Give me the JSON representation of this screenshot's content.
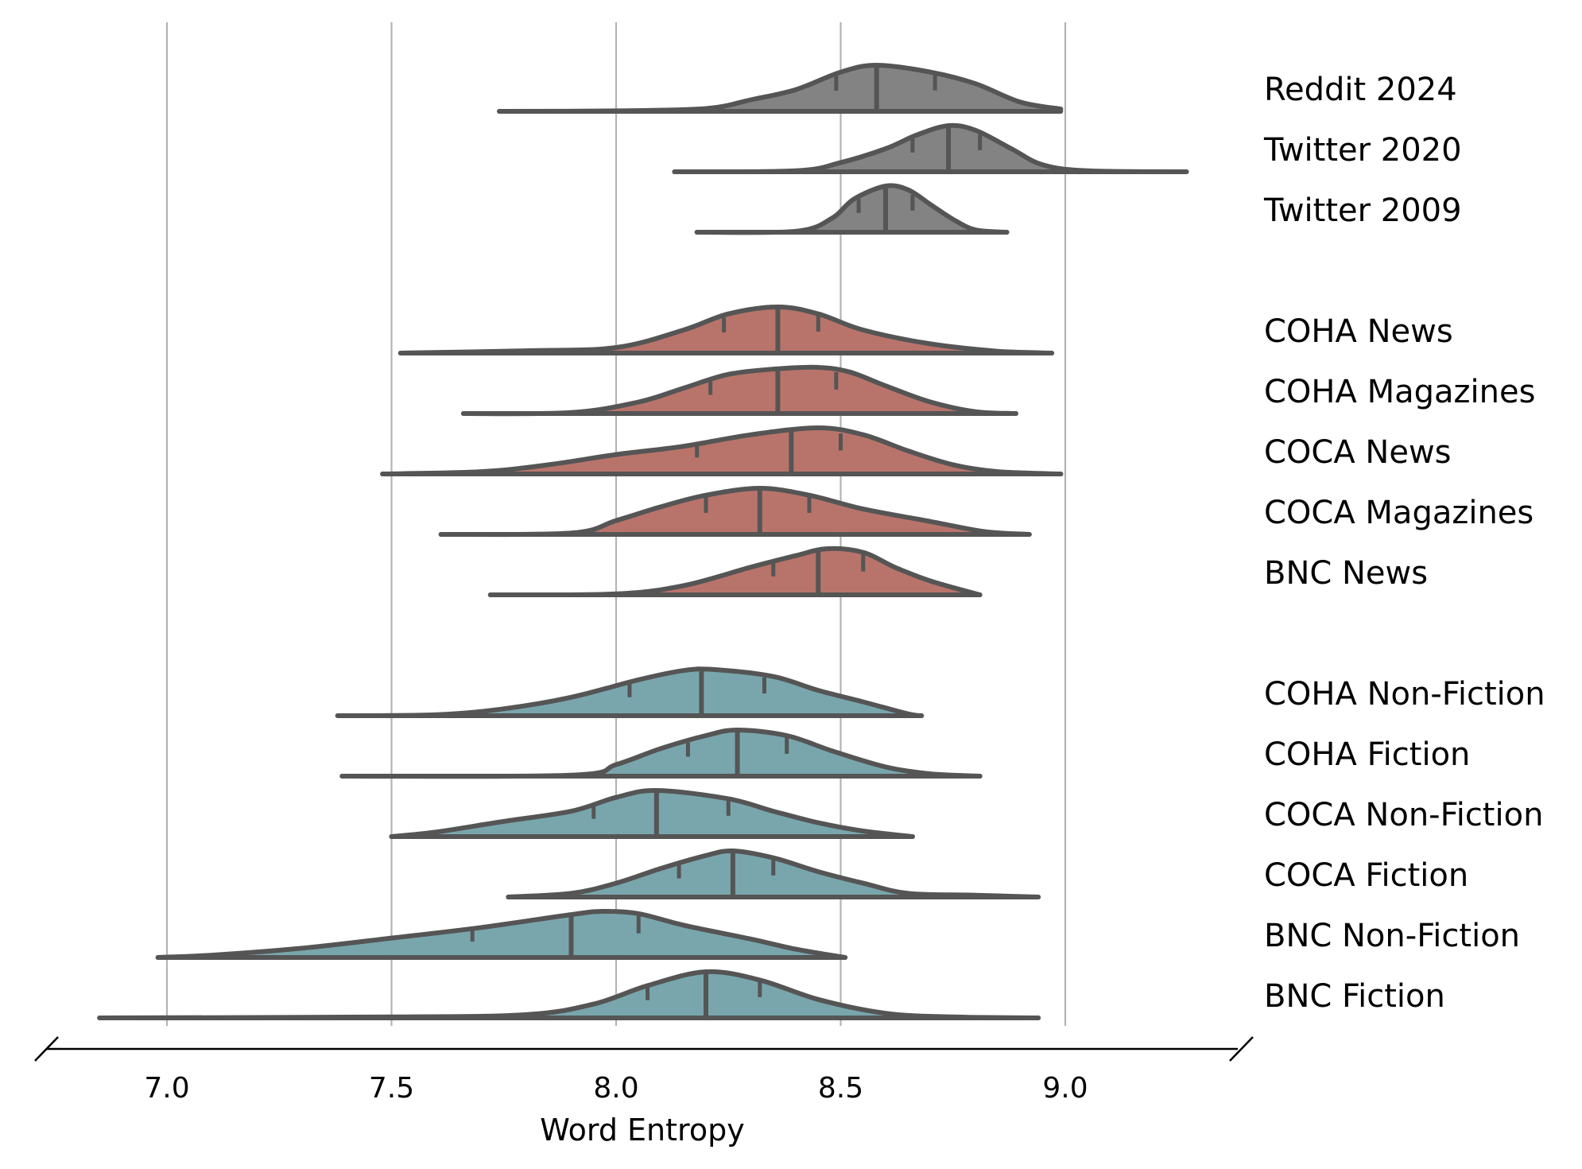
{
  "chart_data": {
    "type": "ridgeline",
    "xlabel": "Word Entropy",
    "xlim": [
      6.7,
      9.42
    ],
    "xticks": [
      7.0,
      7.5,
      8.0,
      8.5,
      9.0
    ],
    "x_tick_labels": [
      "7.0",
      "7.5",
      "8.0",
      "8.5",
      "9.0"
    ],
    "grid": "vertical",
    "colors": {
      "social_media": "#838383",
      "news_magazines": "#b8746b",
      "books": "#79a6ad",
      "outline": "#555555",
      "grid": "#b3b3b3"
    },
    "groups": [
      {
        "color_key": "social_media",
        "series": [
          {
            "name": "Reddit 2024",
            "min": 7.74,
            "max": 8.99,
            "q1": 8.49,
            "median": 8.58,
            "q3": 8.71,
            "peak": 8.58,
            "shape": [
              [
                7.74,
                0
              ],
              [
                8.0,
                0.01
              ],
              [
                8.2,
                0.06
              ],
              [
                8.3,
                0.25
              ],
              [
                8.4,
                0.47
              ],
              [
                8.5,
                0.85
              ],
              [
                8.58,
                1.0
              ],
              [
                8.7,
                0.85
              ],
              [
                8.8,
                0.6
              ],
              [
                8.9,
                0.2
              ],
              [
                8.99,
                0.05
              ]
            ]
          },
          {
            "name": "Twitter 2020",
            "min": 8.13,
            "max": 9.27,
            "q1": 8.66,
            "median": 8.74,
            "q3": 8.81,
            "peak": 8.74,
            "shape": [
              [
                8.13,
                0
              ],
              [
                8.4,
                0.02
              ],
              [
                8.5,
                0.2
              ],
              [
                8.6,
                0.5
              ],
              [
                8.67,
                0.8
              ],
              [
                8.74,
                1.0
              ],
              [
                8.8,
                0.9
              ],
              [
                8.88,
                0.5
              ],
              [
                8.95,
                0.15
              ],
              [
                9.05,
                0.02
              ],
              [
                9.27,
                0
              ]
            ]
          },
          {
            "name": "Twitter 2009",
            "min": 8.18,
            "max": 8.87,
            "q1": 8.54,
            "median": 8.6,
            "q3": 8.66,
            "peak": 8.6,
            "shape": [
              [
                8.18,
                0
              ],
              [
                8.4,
                0.02
              ],
              [
                8.48,
                0.3
              ],
              [
                8.53,
                0.72
              ],
              [
                8.6,
                1.0
              ],
              [
                8.65,
                0.92
              ],
              [
                8.7,
                0.6
              ],
              [
                8.75,
                0.28
              ],
              [
                8.8,
                0.05
              ],
              [
                8.87,
                0
              ]
            ]
          }
        ]
      },
      {
        "color_key": "news_magazines",
        "series": [
          {
            "name": "COHA News",
            "min": 7.52,
            "max": 8.97,
            "q1": 8.24,
            "median": 8.36,
            "q3": 8.45,
            "peak": 8.36,
            "shape": [
              [
                7.52,
                0
              ],
              [
                7.8,
                0.05
              ],
              [
                8.0,
                0.12
              ],
              [
                8.15,
                0.5
              ],
              [
                8.25,
                0.85
              ],
              [
                8.36,
                1.0
              ],
              [
                8.45,
                0.85
              ],
              [
                8.55,
                0.5
              ],
              [
                8.7,
                0.2
              ],
              [
                8.85,
                0.04
              ],
              [
                8.97,
                0
              ]
            ]
          },
          {
            "name": "COHA Magazines",
            "min": 7.66,
            "max": 8.89,
            "q1": 8.21,
            "median": 8.36,
            "q3": 8.49,
            "peak": 8.45,
            "shape": [
              [
                7.66,
                0
              ],
              [
                7.9,
                0.02
              ],
              [
                8.05,
                0.25
              ],
              [
                8.15,
                0.55
              ],
              [
                8.25,
                0.85
              ],
              [
                8.36,
                0.97
              ],
              [
                8.45,
                1.0
              ],
              [
                8.52,
                0.9
              ],
              [
                8.6,
                0.6
              ],
              [
                8.7,
                0.25
              ],
              [
                8.8,
                0.04
              ],
              [
                8.89,
                0
              ]
            ]
          },
          {
            "name": "COCA News",
            "min": 7.48,
            "max": 8.99,
            "q1": 8.18,
            "median": 8.39,
            "q3": 8.5,
            "peak": 8.45,
            "shape": [
              [
                7.48,
                0
              ],
              [
                7.7,
                0.05
              ],
              [
                7.85,
                0.2
              ],
              [
                8.0,
                0.42
              ],
              [
                8.15,
                0.6
              ],
              [
                8.3,
                0.85
              ],
              [
                8.45,
                1.0
              ],
              [
                8.55,
                0.85
              ],
              [
                8.65,
                0.5
              ],
              [
                8.75,
                0.2
              ],
              [
                8.85,
                0.05
              ],
              [
                8.99,
                0
              ]
            ]
          },
          {
            "name": "COCA Magazines",
            "min": 7.61,
            "max": 8.92,
            "q1": 8.2,
            "median": 8.32,
            "q3": 8.43,
            "peak": 8.32,
            "shape": [
              [
                7.61,
                0
              ],
              [
                7.9,
                0.03
              ],
              [
                8.0,
                0.3
              ],
              [
                8.1,
                0.6
              ],
              [
                8.2,
                0.85
              ],
              [
                8.32,
                1.0
              ],
              [
                8.43,
                0.85
              ],
              [
                8.55,
                0.55
              ],
              [
                8.7,
                0.28
              ],
              [
                8.82,
                0.06
              ],
              [
                8.92,
                0
              ]
            ]
          },
          {
            "name": "BNC News",
            "min": 7.72,
            "max": 8.81,
            "q1": 8.35,
            "median": 8.45,
            "q3": 8.55,
            "peak": 8.47,
            "shape": [
              [
                7.72,
                0
              ],
              [
                8.0,
                0.02
              ],
              [
                8.15,
                0.2
              ],
              [
                8.3,
                0.6
              ],
              [
                8.4,
                0.85
              ],
              [
                8.47,
                1.0
              ],
              [
                8.55,
                0.92
              ],
              [
                8.62,
                0.6
              ],
              [
                8.7,
                0.3
              ],
              [
                8.81,
                0
              ]
            ]
          }
        ]
      },
      {
        "color_key": "books",
        "series": [
          {
            "name": "COHA Non-Fiction",
            "min": 7.38,
            "max": 8.68,
            "q1": 8.03,
            "median": 8.19,
            "q3": 8.33,
            "peak": 8.22,
            "shape": [
              [
                7.38,
                0
              ],
              [
                7.6,
                0.02
              ],
              [
                7.75,
                0.15
              ],
              [
                7.9,
                0.4
              ],
              [
                8.05,
                0.78
              ],
              [
                8.15,
                0.98
              ],
              [
                8.22,
                1.0
              ],
              [
                8.35,
                0.85
              ],
              [
                8.45,
                0.55
              ],
              [
                8.55,
                0.3
              ],
              [
                8.65,
                0.04
              ],
              [
                8.68,
                0
              ]
            ]
          },
          {
            "name": "COHA Fiction",
            "min": 7.39,
            "max": 8.81,
            "q1": 8.16,
            "median": 8.27,
            "q3": 8.38,
            "peak": 8.27,
            "shape": [
              [
                7.39,
                0
              ],
              [
                7.9,
                0.02
              ],
              [
                8.0,
                0.25
              ],
              [
                8.1,
                0.6
              ],
              [
                8.2,
                0.88
              ],
              [
                8.27,
                1.0
              ],
              [
                8.38,
                0.88
              ],
              [
                8.48,
                0.55
              ],
              [
                8.6,
                0.2
              ],
              [
                8.7,
                0.05
              ],
              [
                8.81,
                0
              ]
            ]
          },
          {
            "name": "COCA Non-Fiction",
            "min": 7.5,
            "max": 8.66,
            "q1": 7.95,
            "median": 8.09,
            "q3": 8.25,
            "peak": 8.09,
            "shape": [
              [
                7.5,
                0
              ],
              [
                7.6,
                0.1
              ],
              [
                7.75,
                0.33
              ],
              [
                7.9,
                0.55
              ],
              [
                8.0,
                0.85
              ],
              [
                8.09,
                1.0
              ],
              [
                8.25,
                0.82
              ],
              [
                8.35,
                0.55
              ],
              [
                8.45,
                0.3
              ],
              [
                8.55,
                0.12
              ],
              [
                8.66,
                0
              ]
            ]
          },
          {
            "name": "COCA Fiction",
            "min": 7.76,
            "max": 8.94,
            "q1": 8.14,
            "median": 8.26,
            "q3": 8.35,
            "peak": 8.26,
            "shape": [
              [
                7.76,
                0
              ],
              [
                7.9,
                0.08
              ],
              [
                8.0,
                0.3
              ],
              [
                8.1,
                0.62
              ],
              [
                8.2,
                0.9
              ],
              [
                8.26,
                1.0
              ],
              [
                8.35,
                0.85
              ],
              [
                8.45,
                0.55
              ],
              [
                8.55,
                0.3
              ],
              [
                8.65,
                0.08
              ],
              [
                8.8,
                0.04
              ],
              [
                8.94,
                0
              ]
            ]
          },
          {
            "name": "BNC Non-Fiction",
            "min": 6.98,
            "max": 8.51,
            "q1": 7.68,
            "median": 7.9,
            "q3": 8.05,
            "peak": 7.97,
            "shape": [
              [
                6.98,
                0
              ],
              [
                7.1,
                0.05
              ],
              [
                7.3,
                0.2
              ],
              [
                7.5,
                0.42
              ],
              [
                7.7,
                0.65
              ],
              [
                7.9,
                0.93
              ],
              [
                7.97,
                1.0
              ],
              [
                8.05,
                0.95
              ],
              [
                8.15,
                0.7
              ],
              [
                8.3,
                0.4
              ],
              [
                8.4,
                0.18
              ],
              [
                8.51,
                0
              ]
            ]
          },
          {
            "name": "BNC Fiction",
            "min": 6.85,
            "max": 8.94,
            "q1": 8.07,
            "median": 8.2,
            "q3": 8.32,
            "peak": 8.2,
            "shape": [
              [
                6.85,
                0
              ],
              [
                7.5,
                0.02
              ],
              [
                7.8,
                0.07
              ],
              [
                7.95,
                0.3
              ],
              [
                8.07,
                0.7
              ],
              [
                8.2,
                1.0
              ],
              [
                8.32,
                0.82
              ],
              [
                8.45,
                0.4
              ],
              [
                8.6,
                0.1
              ],
              [
                8.75,
                0.02
              ],
              [
                8.94,
                0
              ]
            ]
          }
        ]
      }
    ]
  }
}
